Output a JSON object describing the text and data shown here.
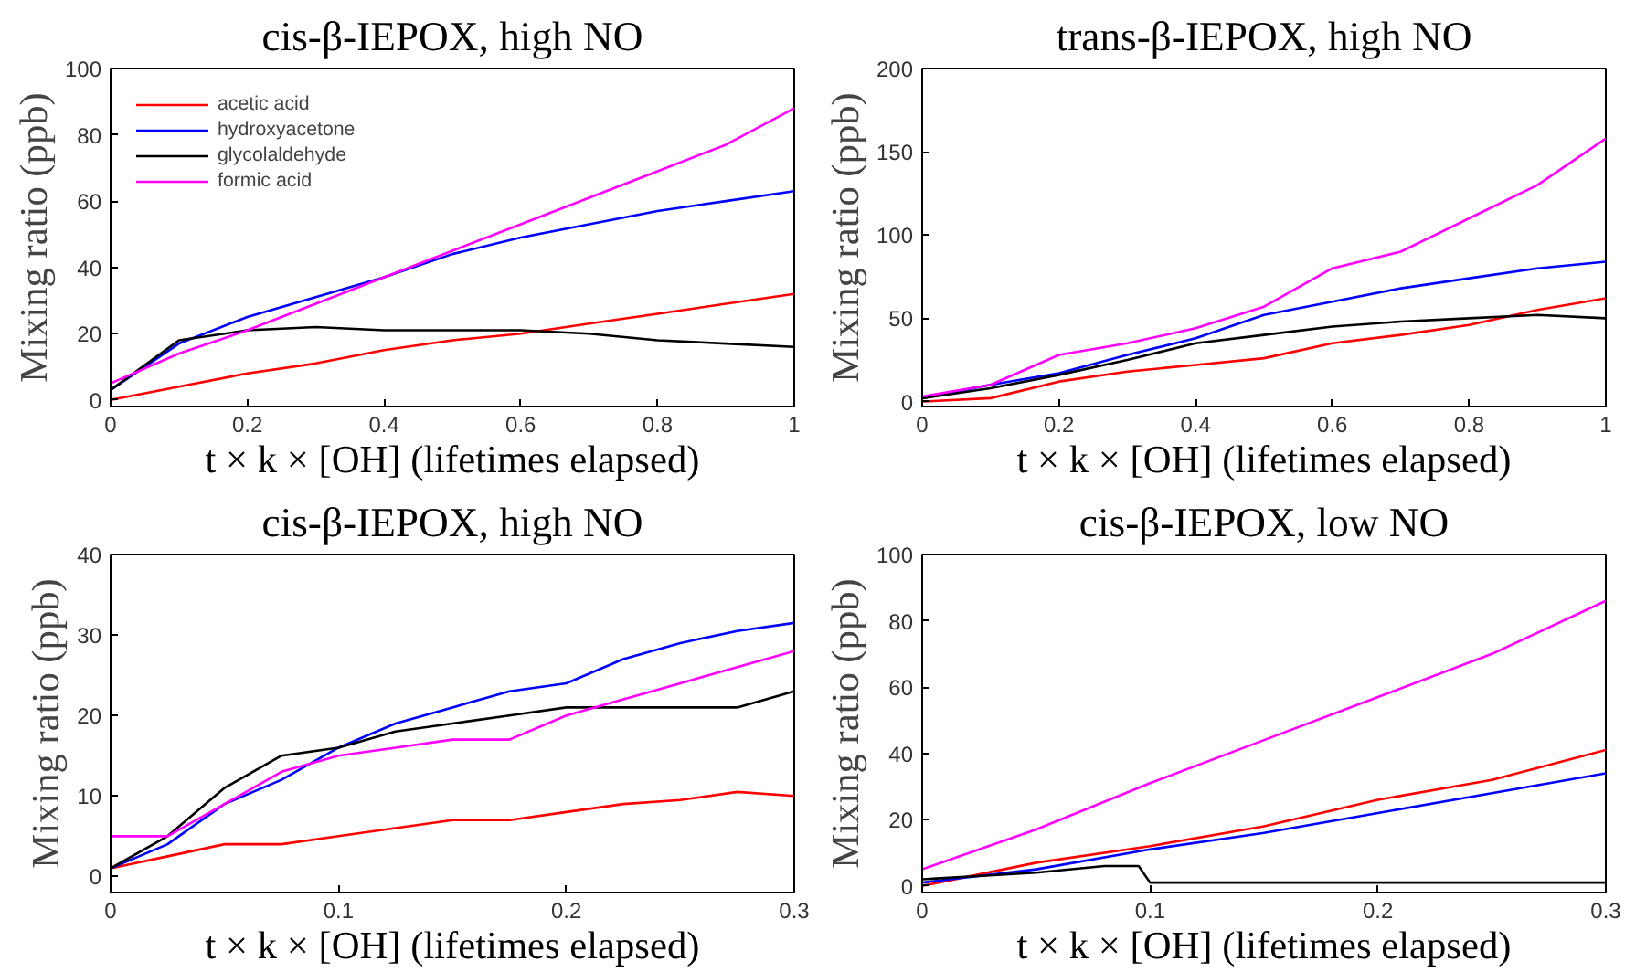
{
  "chart_data": [
    {
      "type": "line",
      "title": "cis-β-IEPOX, high NO",
      "xlabel": "t × k × [OH] (lifetimes elapsed)",
      "ylabel": "Mixing ratio (ppb)",
      "xlim": [
        0,
        1
      ],
      "ylim": [
        -2,
        100
      ],
      "xticks": [
        0,
        0.2,
        0.4,
        0.6,
        0.8,
        1
      ],
      "yticks": [
        0,
        20,
        40,
        60,
        80,
        100
      ],
      "grid": false,
      "legend": "top left",
      "marker": "none",
      "line_style": "solid",
      "x": [
        0,
        0.1,
        0.2,
        0.3,
        0.4,
        0.5,
        0.6,
        0.7,
        0.8,
        0.9,
        1
      ],
      "series": [
        {
          "name": "acetic acid",
          "color": "#ff0000",
          "values": [
            0,
            4,
            8,
            11,
            15,
            18,
            20,
            23,
            26,
            29,
            32
          ]
        },
        {
          "name": "hydroxyacetone",
          "color": "#0000ff",
          "values": [
            3,
            17,
            25,
            31,
            37,
            44,
            49,
            53,
            57,
            60,
            63
          ]
        },
        {
          "name": "glycolaldehyde",
          "color": "#000000",
          "values": [
            3,
            18,
            21,
            22,
            21,
            21,
            21,
            20,
            18,
            17,
            16
          ]
        },
        {
          "name": "formic acid",
          "color": "#ff00ff",
          "values": [
            5,
            14,
            21,
            29,
            37,
            45,
            53,
            61,
            69,
            77,
            88
          ]
        }
      ]
    },
    {
      "type": "line",
      "title": "trans-β-IEPOX, high NO",
      "xlabel": "t × k × [OH] (lifetimes elapsed)",
      "ylabel": "Mixing ratio (ppb)",
      "xlim": [
        0,
        1
      ],
      "ylim": [
        -3,
        200
      ],
      "xticks": [
        0,
        0.2,
        0.4,
        0.6,
        0.8,
        1
      ],
      "yticks": [
        0,
        50,
        100,
        150,
        200
      ],
      "grid": false,
      "marker": "none",
      "line_style": "solid",
      "x": [
        0,
        0.1,
        0.2,
        0.3,
        0.4,
        0.5,
        0.6,
        0.7,
        0.8,
        0.9,
        1
      ],
      "series": [
        {
          "color": "#ff0000",
          "values": [
            0,
            2,
            12,
            18,
            22,
            26,
            35,
            40,
            46,
            55,
            62
          ]
        },
        {
          "color": "#0000ff",
          "values": [
            2,
            10,
            17,
            28,
            38,
            52,
            60,
            68,
            74,
            80,
            84
          ]
        },
        {
          "color": "#000000",
          "values": [
            2,
            8,
            16,
            25,
            35,
            40,
            45,
            48,
            50,
            52,
            50
          ]
        },
        {
          "color": "#ff00ff",
          "values": [
            3,
            10,
            28,
            35,
            44,
            57,
            80,
            90,
            110,
            130,
            158
          ]
        }
      ]
    },
    {
      "type": "line",
      "title": "cis-β-IEPOX, high NO",
      "xlabel": "t × k × [OH] (lifetimes elapsed)",
      "ylabel": "Mixing ratio (ppb)",
      "xlim": [
        0,
        0.3
      ],
      "ylim": [
        -2,
        40
      ],
      "xticks": [
        0,
        0.1,
        0.2,
        0.3
      ],
      "yticks": [
        0,
        10,
        20,
        30,
        40
      ],
      "grid": false,
      "marker": "none",
      "line_style": "solid",
      "x": [
        0,
        0.025,
        0.05,
        0.075,
        0.1,
        0.125,
        0.15,
        0.175,
        0.2,
        0.225,
        0.25,
        0.275,
        0.3
      ],
      "series": [
        {
          "color": "#ff0000",
          "values": [
            1,
            2.5,
            4,
            4,
            5,
            6,
            7,
            7,
            8,
            9,
            9.5,
            10.5,
            10
          ]
        },
        {
          "color": "#0000ff",
          "values": [
            1,
            4,
            9,
            12,
            16,
            19,
            21,
            23,
            24,
            27,
            29,
            30.5,
            31.5
          ]
        },
        {
          "color": "#000000",
          "values": [
            1,
            5,
            11,
            15,
            16,
            18,
            19,
            20,
            21,
            21,
            21,
            21,
            23
          ]
        },
        {
          "color": "#ff00ff",
          "values": [
            5,
            5,
            9,
            13,
            15,
            16,
            17,
            17,
            20,
            22,
            24,
            26,
            28
          ]
        }
      ]
    },
    {
      "type": "line",
      "title": "cis-β-IEPOX, low NO",
      "xlabel": "t × k × [OH] (lifetimes elapsed)",
      "ylabel": "Mixing ratio (ppb)",
      "xlim": [
        0,
        0.3
      ],
      "ylim": [
        -2,
        100
      ],
      "xticks": [
        0,
        0.1,
        0.2,
        0.3
      ],
      "yticks": [
        0,
        20,
        40,
        60,
        80,
        100
      ],
      "grid": false,
      "marker": "none",
      "line_style": "solid",
      "x": [
        0,
        0.05,
        0.1,
        0.15,
        0.2,
        0.25,
        0.3
      ],
      "series": [
        {
          "color": "#ff0000",
          "values": [
            0,
            7,
            12,
            18,
            26,
            32,
            41
          ]
        },
        {
          "color": "#0000ff",
          "values": [
            1,
            5,
            11,
            16,
            22,
            28,
            34
          ]
        },
        {
          "color": "#000000",
          "x": [
            0,
            0.05,
            0.08,
            0.095,
            0.1,
            0.15,
            0.2,
            0.25,
            0.3
          ],
          "values": [
            2,
            4,
            6,
            6,
            1,
            1,
            1,
            1,
            1
          ]
        },
        {
          "color": "#ff00ff",
          "values": [
            5,
            17,
            31,
            44,
            57,
            70,
            86
          ]
        }
      ]
    }
  ]
}
